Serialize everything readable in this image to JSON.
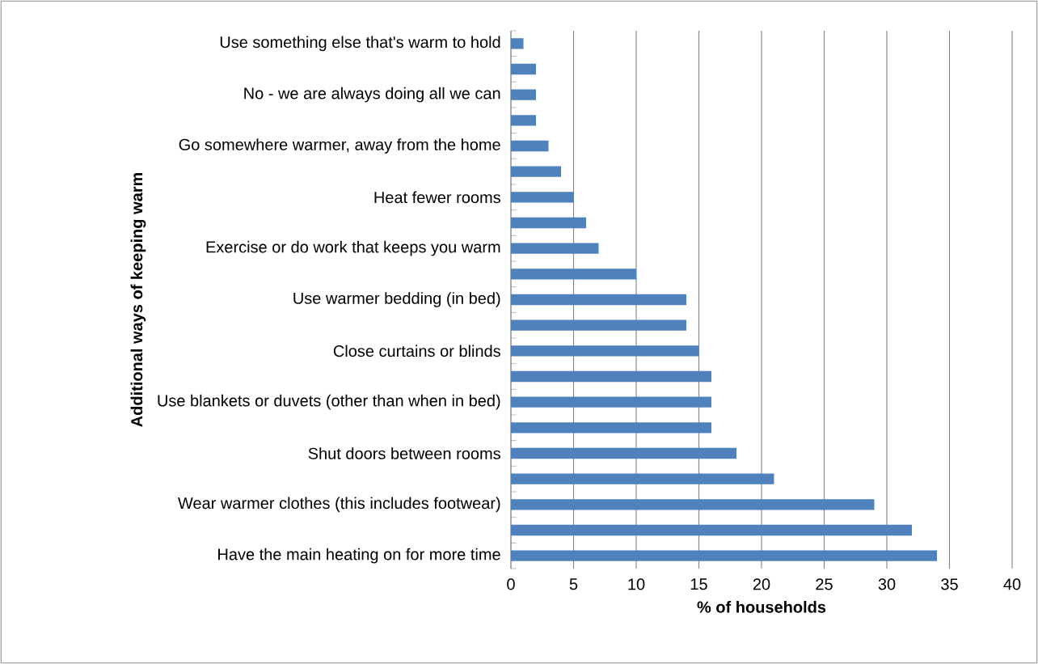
{
  "chart_data": {
    "type": "bar",
    "orientation": "horizontal",
    "xlabel": "% of households",
    "ylabel": "Additional ways of keeping warm",
    "categories": [
      "Use something else that's warm to hold",
      null,
      "No - we are always doing all we can",
      null,
      "Go somewhere warmer, away from the home",
      null,
      "Heat fewer rooms",
      null,
      "Exercise or do work that keeps you warm",
      null,
      "Use warmer bedding (in bed)",
      null,
      "Close curtains or blinds",
      null,
      "Use blankets or duvets (other than when in bed)",
      null,
      "Shut doors between rooms",
      null,
      "Wear warmer clothes (this includes footwear)",
      null,
      "Have the main heating on for more time"
    ],
    "values": [
      1,
      2,
      2,
      2,
      3,
      4,
      5,
      6,
      7,
      10,
      14,
      14,
      15,
      16,
      16,
      16,
      18,
      21,
      29,
      32,
      34
    ],
    "color": "#4f81bd",
    "xlim": [
      0,
      40
    ],
    "xticks": [
      0,
      5,
      10,
      15,
      20,
      25,
      30,
      35,
      40
    ],
    "grid": "x"
  }
}
